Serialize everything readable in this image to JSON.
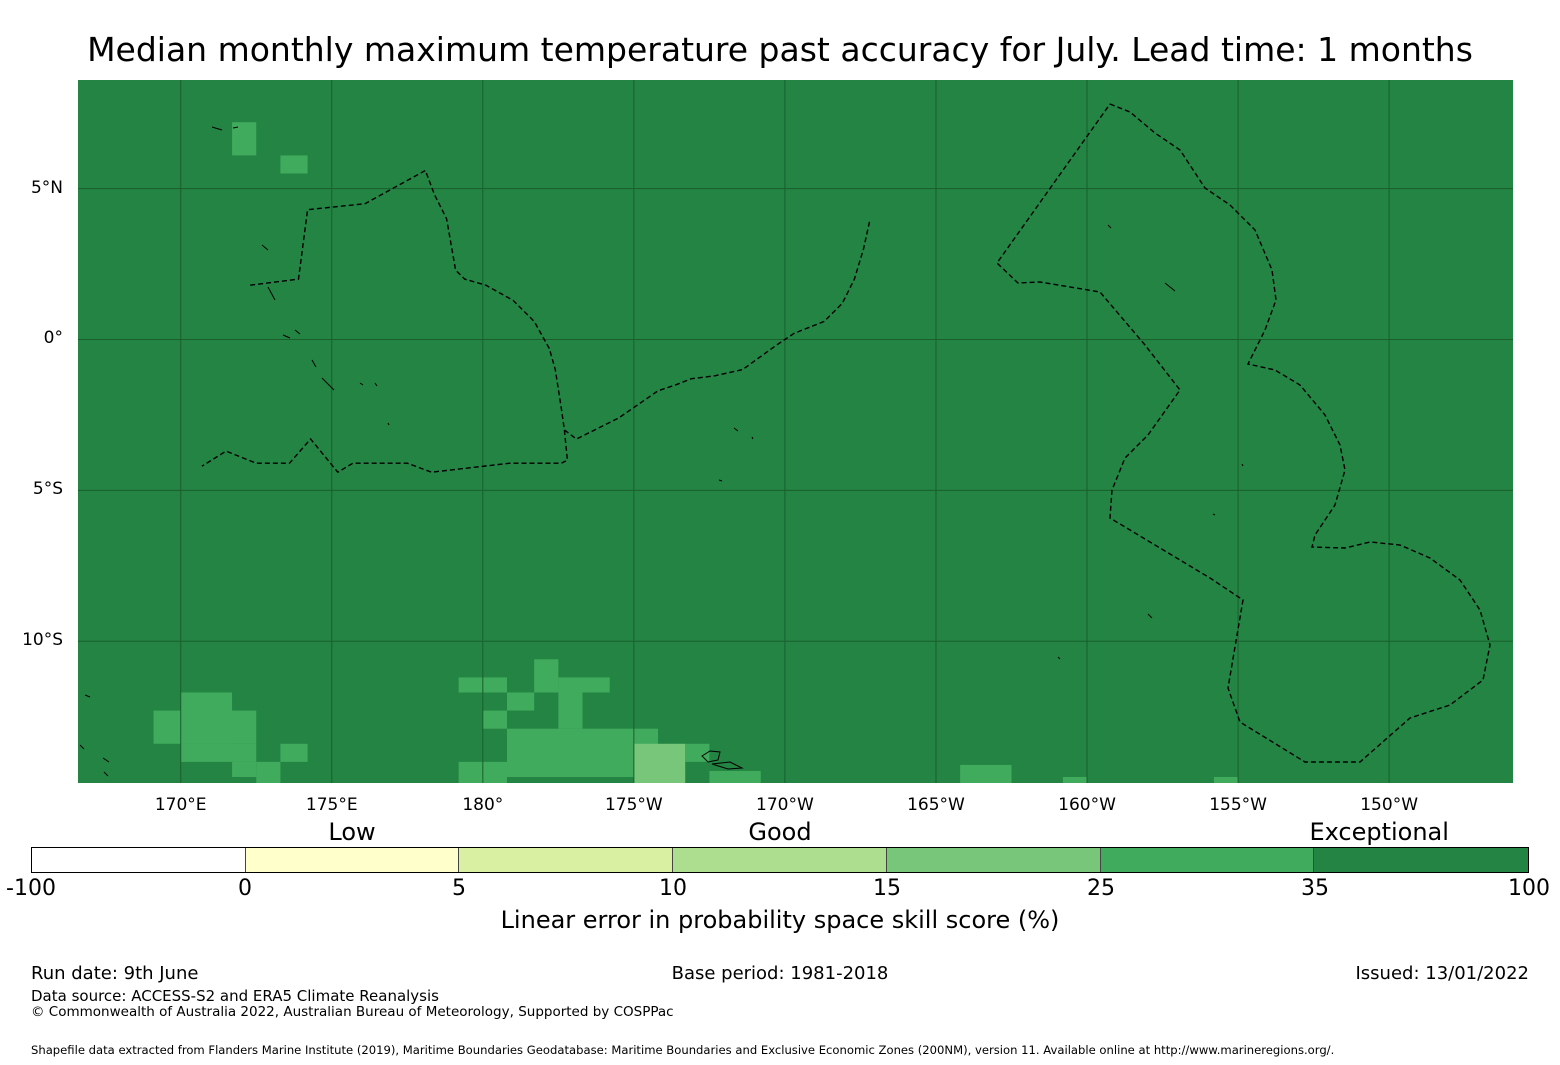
{
  "title": "Median monthly maximum temperature past accuracy for July. Lead time: 1 months",
  "map": {
    "background_color": "#238443",
    "extent": {
      "lon_min": 166.6,
      "lon_max": 214.1,
      "lat_min": -14.7,
      "lat_max": 8.6
    },
    "lon_ticks": [
      {
        "lon": 170,
        "label": "170°E"
      },
      {
        "lon": 175,
        "label": "175°E"
      },
      {
        "lon": 180,
        "label": "180°"
      },
      {
        "lon": 185,
        "label": "175°W"
      },
      {
        "lon": 190,
        "label": "170°W"
      },
      {
        "lon": 195,
        "label": "165°W"
      },
      {
        "lon": 200,
        "label": "160°W"
      },
      {
        "lon": 205,
        "label": "155°W"
      },
      {
        "lon": 210,
        "label": "150°W"
      }
    ],
    "lat_ticks": [
      {
        "lat": 5,
        "label": "5°N"
      },
      {
        "lat": 0,
        "label": "0°"
      },
      {
        "lat": -5,
        "label": "5°S"
      },
      {
        "lat": -10,
        "label": "10°S"
      }
    ],
    "skill_cells": [
      {
        "lon0": 171.7,
        "lon1": 172.5,
        "lat0": 6.1,
        "lat1": 7.2,
        "color": "#41ab5d"
      },
      {
        "lon0": 173.3,
        "lon1": 174.2,
        "lat0": 5.5,
        "lat1": 6.1,
        "color": "#41ab5d"
      },
      {
        "lon0": 170.0,
        "lon1": 171.7,
        "lat0": -13.4,
        "lat1": -11.7,
        "color": "#41ab5d"
      },
      {
        "lon0": 169.1,
        "lon1": 172.5,
        "lat0": -13.4,
        "lat1": -12.3,
        "color": "#41ab5d"
      },
      {
        "lon0": 170.0,
        "lon1": 172.5,
        "lat0": -14.0,
        "lat1": -13.4,
        "color": "#41ab5d"
      },
      {
        "lon0": 171.7,
        "lon1": 172.5,
        "lat0": -14.5,
        "lat1": -14.0,
        "color": "#41ab5d"
      },
      {
        "lon0": 172.5,
        "lon1": 173.3,
        "lat0": -14.7,
        "lat1": -14.0,
        "color": "#41ab5d"
      },
      {
        "lon0": 173.3,
        "lon1": 174.2,
        "lat0": -14.0,
        "lat1": -13.4,
        "color": "#41ab5d"
      },
      {
        "lon0": 179.2,
        "lon1": 180.8,
        "lat0": -11.7,
        "lat1": -11.2,
        "color": "#41ab5d"
      },
      {
        "lon0": 181.7,
        "lon1": 182.5,
        "lat0": -11.7,
        "lat1": -10.6,
        "color": "#41ab5d"
      },
      {
        "lon0": 182.5,
        "lon1": 184.2,
        "lat0": -11.7,
        "lat1": -11.2,
        "color": "#41ab5d"
      },
      {
        "lon0": 180.8,
        "lon1": 181.7,
        "lat0": -12.3,
        "lat1": -11.7,
        "color": "#41ab5d"
      },
      {
        "lon0": 182.5,
        "lon1": 183.3,
        "lat0": -12.9,
        "lat1": -11.7,
        "color": "#41ab5d"
      },
      {
        "lon0": 180.0,
        "lon1": 180.8,
        "lat0": -12.9,
        "lat1": -12.3,
        "color": "#41ab5d"
      },
      {
        "lon0": 180.8,
        "lon1": 185.8,
        "lat0": -14.5,
        "lat1": -12.9,
        "color": "#41ab5d"
      },
      {
        "lon0": 179.2,
        "lon1": 180.8,
        "lat0": -14.7,
        "lat1": -14.0,
        "color": "#41ab5d"
      },
      {
        "lon0": 185.0,
        "lon1": 186.7,
        "lat0": -14.7,
        "lat1": -13.4,
        "color": "#78c679"
      },
      {
        "lon0": 186.7,
        "lon1": 187.5,
        "lat0": -14.0,
        "lat1": -13.4,
        "color": "#41ab5d"
      },
      {
        "lon0": 187.5,
        "lon1": 189.2,
        "lat0": -14.7,
        "lat1": -14.3,
        "color": "#41ab5d"
      },
      {
        "lon0": 195.8,
        "lon1": 197.5,
        "lat0": -14.7,
        "lat1": -14.1,
        "color": "#41ab5d"
      },
      {
        "lon0": 199.2,
        "lon1": 200.0,
        "lat0": -14.7,
        "lat1": -14.5,
        "color": "#41ab5d"
      },
      {
        "lon0": 204.2,
        "lon1": 205.0,
        "lat0": -14.7,
        "lat1": -14.5,
        "color": "#41ab5d"
      }
    ],
    "eez_boundaries": [
      [
        [
          172.3,
          1.8
        ],
        [
          173.9,
          2.0
        ],
        [
          174.2,
          4.3
        ],
        [
          176.1,
          4.5
        ],
        [
          178.1,
          5.6
        ],
        [
          178.4,
          4.8
        ],
        [
          178.8,
          4.0
        ],
        [
          179.1,
          2.3
        ],
        [
          179.4,
          2.0
        ],
        [
          180.1,
          1.8
        ],
        [
          181.0,
          1.3
        ],
        [
          181.7,
          0.6
        ],
        [
          182.2,
          -0.3
        ],
        [
          182.4,
          -1.0
        ],
        [
          182.6,
          -2.3
        ],
        [
          182.7,
          -3.0
        ],
        [
          182.8,
          -4.0
        ],
        [
          182.6,
          -4.1
        ],
        [
          180.9,
          -4.1
        ],
        [
          178.3,
          -4.4
        ],
        [
          177.5,
          -4.1
        ],
        [
          175.7,
          -4.1
        ],
        [
          175.2,
          -4.4
        ],
        [
          174.3,
          -3.3
        ],
        [
          173.6,
          -4.1
        ],
        [
          172.5,
          -4.1
        ],
        [
          171.5,
          -3.7
        ],
        [
          170.7,
          -4.2
        ]
      ],
      [
        [
          182.7,
          -3.0
        ],
        [
          183.1,
          -3.3
        ],
        [
          184.5,
          -2.6
        ],
        [
          185.8,
          -1.7
        ],
        [
          186.4,
          -1.5
        ],
        [
          186.9,
          -1.3
        ],
        [
          187.7,
          -1.2
        ],
        [
          188.6,
          -1.0
        ],
        [
          189.7,
          -0.2
        ],
        [
          190.3,
          0.2
        ],
        [
          191.3,
          0.6
        ],
        [
          191.9,
          1.2
        ],
        [
          192.3,
          2.0
        ],
        [
          192.6,
          3.0
        ],
        [
          192.8,
          3.9
        ]
      ]
    ],
    "eez_paths_frac": []
  },
  "colorbar": {
    "categories": [
      {
        "label": "Low",
        "center_frac": 0.2143
      },
      {
        "label": "Good",
        "center_frac": 0.5
      },
      {
        "label": "Exceptional",
        "center_frac": 0.9
      }
    ],
    "segments": [
      {
        "from": "-100",
        "to": "0",
        "color": "#ffffff"
      },
      {
        "from": "0",
        "to": "5",
        "color": "#ffffcc"
      },
      {
        "from": "5",
        "to": "10",
        "color": "#d9f0a3"
      },
      {
        "from": "10",
        "to": "15",
        "color": "#addd8e"
      },
      {
        "from": "15",
        "to": "25",
        "color": "#78c679"
      },
      {
        "from": "25",
        "to": "35",
        "color": "#41ab5d"
      },
      {
        "from": "35",
        "to": "100",
        "color": "#238443"
      }
    ],
    "ticks": [
      "-100",
      "0",
      "5",
      "10",
      "15",
      "25",
      "35",
      "100"
    ],
    "label": "Linear error in probability space skill score (%)"
  },
  "footer": {
    "run_date": "Run date: 9th June",
    "base_period": "Base period: 1981-2018",
    "issued": "Issued: 13/01/2022",
    "data_source": "Data source: ACCESS-S2 and ERA5 Climate Reanalysis",
    "copyright": "© Commonwealth of Australia 2022, Australian Bureau of Meteorology, Supported by COSPPac",
    "shapefile": "Shapefile data extracted from Flanders Marine Institute (2019), Maritime Boundaries Geodatabase: Maritime Boundaries and Exclusive Economic Zones (200NM), version 11. Available online at http://www.marineregions.org/."
  }
}
